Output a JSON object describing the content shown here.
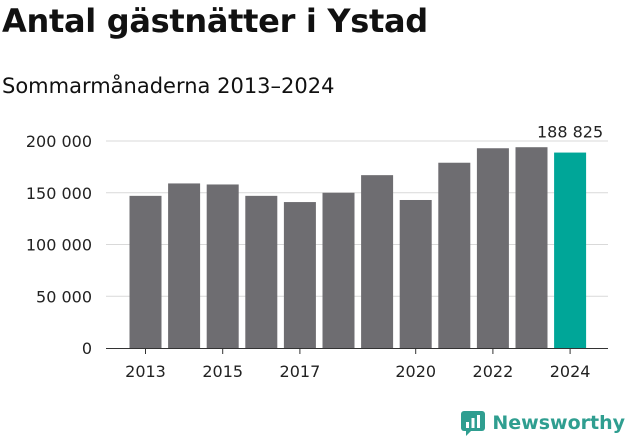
{
  "chart_data": {
    "type": "bar",
    "title": "Antal gästnätter i Ystad",
    "subtitle": "Sommarmånaderna 2013–2024",
    "categories": [
      "2013",
      "2014",
      "2015",
      "2016",
      "2017",
      "2018",
      "2019",
      "2020",
      "2021",
      "2022",
      "2023",
      "2024"
    ],
    "values": [
      147000,
      159000,
      158000,
      147000,
      141000,
      150000,
      167000,
      143000,
      179000,
      193000,
      194000,
      188825
    ],
    "x_tick_labels": [
      "2013",
      "2015",
      "2017",
      "2020",
      "2022",
      "2024"
    ],
    "y_ticks": [
      0,
      50000,
      100000,
      150000,
      200000
    ],
    "y_tick_labels": [
      "0",
      "50 000",
      "100 000",
      "150 000",
      "200 000"
    ],
    "ylim": [
      0,
      200000
    ],
    "highlight_label": "188 825",
    "grid": true,
    "colors": {
      "bar": "#6e6d71",
      "highlight": "#00a698",
      "grid": "#d9d9d9"
    }
  },
  "brand": {
    "name": "Newsworthy",
    "icon": "newsworthy-logo-icon",
    "color": "#2f9e90"
  }
}
